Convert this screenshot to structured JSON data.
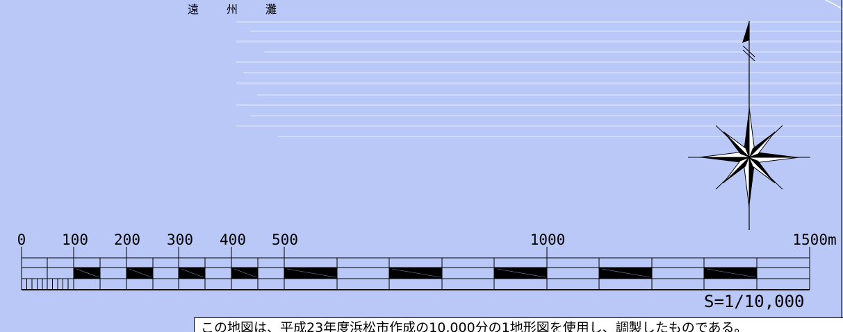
{
  "map": {
    "sea_name_chars": [
      "遠",
      "州",
      "灘"
    ],
    "scale_bar": {
      "tick_labels": [
        "0",
        "100",
        "200",
        "300",
        "400",
        "500",
        "1000",
        "1500m"
      ],
      "ratio": "S=1/10,000"
    },
    "note": "この地図は、平成23年度浜松市作成の10,000分の1地形図を使用し、調製したものである。",
    "colors": {
      "sea": "#b9c8f7",
      "streak": "#d6dffa",
      "ink": "#000000"
    },
    "icons": [
      "compass-rose-icon",
      "north-arrow-icon"
    ]
  }
}
